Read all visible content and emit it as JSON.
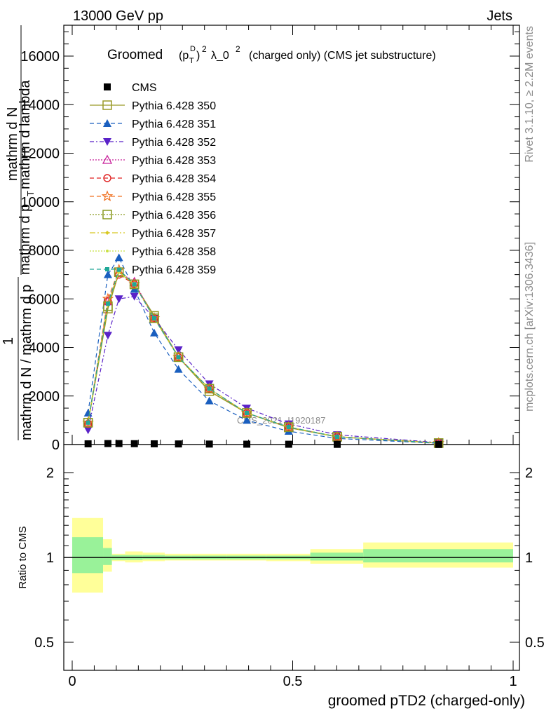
{
  "header": {
    "left": "13000 GeV pp",
    "right": "Jets"
  },
  "side_labels": {
    "rivet": "Rivet 3.1.10, ≥ 2.2M events",
    "mcplots": "mcplots.cern.ch [arXiv:1306.3436]"
  },
  "title": {
    "main": "Groomed",
    "formula": "(p",
    "sup_d": "D",
    "sub_t": "T",
    "close": ")",
    "sup_2": "2",
    "lambda": "λ_0",
    "sup_2b": "2",
    "tail": "(charged only) (CMS jet substructure)"
  },
  "ylabel_main": {
    "numer": "1",
    "denom": "mathrm d N / mathrm d p",
    "sub": "T",
    "rest": " mathrm d lambda",
    "top_numer": "mathrm d",
    "top_numer2": "N",
    "top_denom": "mathrm d p",
    "top_denom_sub": "T",
    "top_denom_rest": "mathrm d lambda"
  },
  "watermark": "CMS_2021_I1920187",
  "ratio_ylabel": "Ratio to CMS",
  "xlabel": "groomed pTD2 (charged-only)",
  "colors": {
    "cms": "#000000",
    "p350": "#9a9a28",
    "p351": "#1a5fbf",
    "p352": "#5a22c8",
    "p353": "#c8209a",
    "p354": "#e02020",
    "p355": "#f07020",
    "p356": "#8a9a20",
    "p357": "#d8c820",
    "p358": "#c8e040",
    "p359": "#20a898",
    "band_outer": "#ffff99",
    "band_inner": "#99f299"
  },
  "chart_data": {
    "type": "line",
    "x": [
      0.036,
      0.081,
      0.106,
      0.141,
      0.186,
      0.241,
      0.311,
      0.396,
      0.491,
      0.601,
      0.831
    ],
    "ylim": [
      0,
      17500
    ],
    "yticks": [
      0,
      2000,
      4000,
      6000,
      8000,
      10000,
      12000,
      14000,
      16000
    ],
    "ytick_labels": [
      "0",
      "2000",
      "4000",
      "6000",
      "8000",
      "10000",
      "12000",
      "14000",
      "16000"
    ],
    "xlim": [
      -0.02,
      1.0
    ],
    "xticks": [
      0,
      0.5,
      1
    ],
    "xtick_labels": [
      "0",
      "0.5",
      "1"
    ],
    "series": [
      {
        "name": "CMS",
        "key": "cms",
        "marker": "square-filled",
        "dash": "",
        "values": [
          30,
          40,
          40,
          35,
          30,
          25,
          20,
          15,
          12,
          8,
          5
        ]
      },
      {
        "name": "Pythia 6.428 350",
        "key": "p350",
        "marker": "square-open",
        "dash": "",
        "values": [
          900,
          5600,
          7100,
          6600,
          5300,
          3600,
          2200,
          1300,
          700,
          320,
          60
        ]
      },
      {
        "name": "Pythia 6.428 351",
        "key": "p351",
        "marker": "triangle-up-filled",
        "dash": "6,4",
        "values": [
          1300,
          7000,
          7700,
          6400,
          4600,
          3100,
          1800,
          1000,
          550,
          250,
          50
        ]
      },
      {
        "name": "Pythia 6.428 352",
        "key": "p352",
        "marker": "triangle-down-filled",
        "dash": "6,3,2,3",
        "values": [
          600,
          4500,
          6000,
          6100,
          5200,
          3900,
          2500,
          1500,
          850,
          400,
          80
        ]
      },
      {
        "name": "Pythia 6.428 353",
        "key": "p353",
        "marker": "triangle-up-open",
        "dash": "2,2",
        "values": [
          900,
          5900,
          7100,
          6700,
          5200,
          3600,
          2300,
          1300,
          720,
          320,
          60
        ]
      },
      {
        "name": "Pythia 6.428 354",
        "key": "p354",
        "marker": "circle-open",
        "dash": "6,4",
        "values": [
          850,
          5900,
          7000,
          6600,
          5200,
          3600,
          2300,
          1300,
          720,
          320,
          60
        ]
      },
      {
        "name": "Pythia 6.428 355",
        "key": "p355",
        "marker": "star-open",
        "dash": "6,4",
        "values": [
          900,
          6000,
          7200,
          6600,
          5200,
          3600,
          2300,
          1300,
          720,
          320,
          60
        ]
      },
      {
        "name": "Pythia 6.428 356",
        "key": "p356",
        "marker": "square-open",
        "dash": "2,2",
        "values": [
          900,
          5700,
          7100,
          6600,
          5200,
          3600,
          2300,
          1300,
          720,
          320,
          60
        ]
      },
      {
        "name": "Pythia 6.428 357",
        "key": "p357",
        "marker": "diamond-filled",
        "dash": "8,3,2,3",
        "values": [
          900,
          5800,
          7100,
          6600,
          5200,
          3600,
          2300,
          1300,
          720,
          320,
          60
        ]
      },
      {
        "name": "Pythia 6.428 358",
        "key": "p358",
        "marker": "dot",
        "dash": "2,2",
        "values": [
          900,
          5800,
          7100,
          6600,
          5200,
          3600,
          2300,
          1300,
          720,
          320,
          60
        ]
      },
      {
        "name": "Pythia 6.428 359",
        "key": "p359",
        "marker": "square-filled-small",
        "dash": "6,4",
        "values": [
          900,
          5800,
          7200,
          6600,
          5200,
          3600,
          2300,
          1300,
          720,
          320,
          60
        ]
      }
    ],
    "ratio": {
      "ylim_log": [
        0.4,
        2.5
      ],
      "yticks": [
        0.5,
        1,
        2
      ],
      "ytick_labels": [
        "0.5",
        "1",
        "2"
      ],
      "bins": [
        {
          "lo": 0.0,
          "hi": 0.07,
          "outer": [
            0.75,
            1.38
          ],
          "inner": [
            0.88,
            1.18
          ]
        },
        {
          "lo": 0.07,
          "hi": 0.09,
          "outer": [
            0.89,
            1.16
          ],
          "inner": [
            0.94,
            1.08
          ]
        },
        {
          "lo": 0.09,
          "hi": 0.12,
          "outer": [
            0.97,
            1.03
          ],
          "inner": [
            0.98,
            1.02
          ]
        },
        {
          "lo": 0.12,
          "hi": 0.16,
          "outer": [
            0.96,
            1.05
          ],
          "inner": [
            0.98,
            1.02
          ]
        },
        {
          "lo": 0.16,
          "hi": 0.21,
          "outer": [
            0.97,
            1.04
          ],
          "inner": [
            0.985,
            1.02
          ]
        },
        {
          "lo": 0.21,
          "hi": 0.27,
          "outer": [
            0.975,
            1.03
          ],
          "inner": [
            0.985,
            1.015
          ]
        },
        {
          "lo": 0.27,
          "hi": 0.35,
          "outer": [
            0.975,
            1.03
          ],
          "inner": [
            0.985,
            1.015
          ]
        },
        {
          "lo": 0.35,
          "hi": 0.44,
          "outer": [
            0.975,
            1.03
          ],
          "inner": [
            0.985,
            1.015
          ]
        },
        {
          "lo": 0.44,
          "hi": 0.54,
          "outer": [
            0.97,
            1.03
          ],
          "inner": [
            0.985,
            1.015
          ]
        },
        {
          "lo": 0.54,
          "hi": 0.66,
          "outer": [
            0.95,
            1.07
          ],
          "inner": [
            0.975,
            1.04
          ]
        },
        {
          "lo": 0.66,
          "hi": 1.0,
          "outer": [
            0.92,
            1.13
          ],
          "inner": [
            0.96,
            1.07
          ]
        }
      ]
    }
  }
}
